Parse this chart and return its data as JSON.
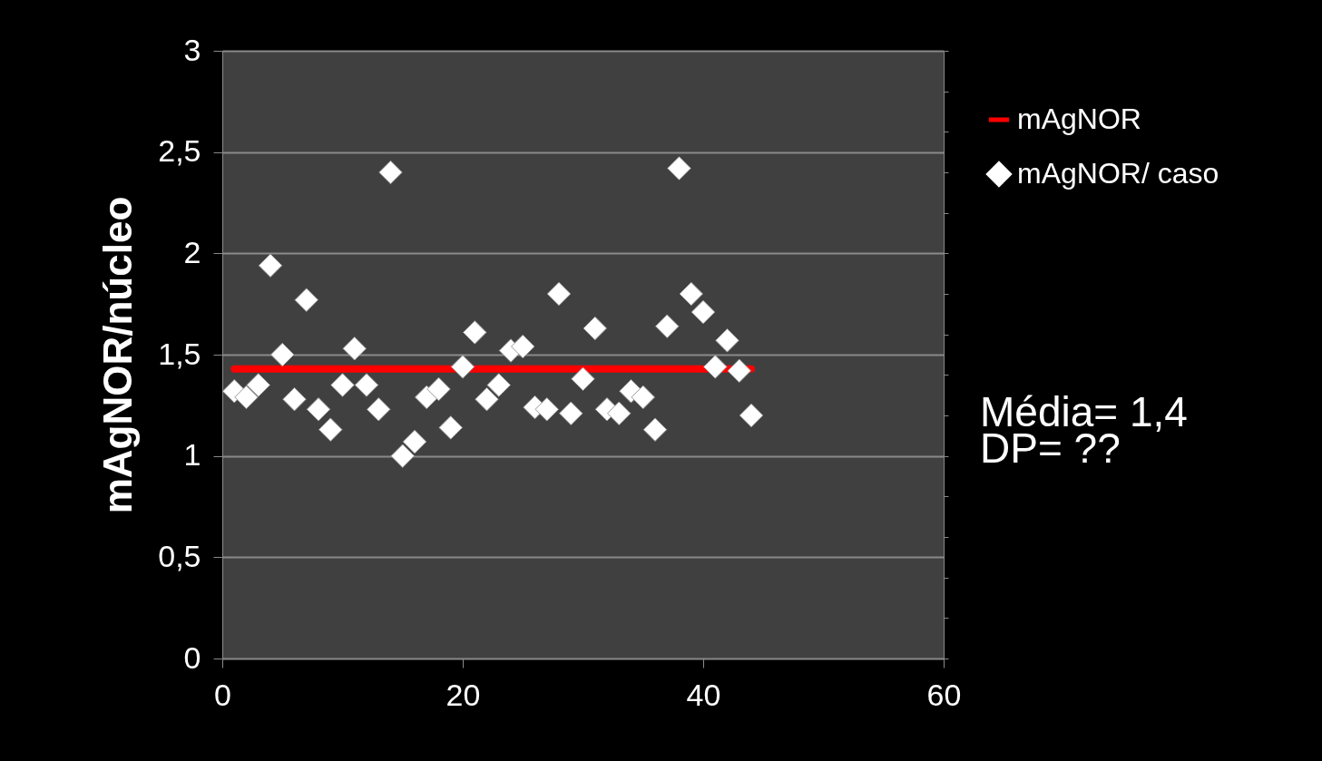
{
  "chart_data": {
    "type": "scatter",
    "ylabel": "mAgNOR/núcleo",
    "xlim": [
      0,
      60
    ],
    "xticks": [
      0,
      20,
      40,
      60
    ],
    "ylim": [
      0,
      3
    ],
    "yticks": [
      0,
      {
        "value": 0.5,
        "label": "0,5"
      },
      1,
      {
        "value": 1.5,
        "label": "1,5"
      },
      2,
      {
        "value": 2.5,
        "label": "2,5"
      },
      3
    ],
    "grid": "y",
    "legend": "right",
    "annotations": [
      "Média=  1,4",
      "DP= ??"
    ],
    "series": [
      {
        "name": "mAgNOR",
        "type": "line",
        "color": "#ff0000",
        "marker": "none",
        "x": [
          1,
          44
        ],
        "values": [
          1.43,
          1.43
        ]
      },
      {
        "name": "mAgNOR/ caso",
        "type": "scatter",
        "color": "#ffffff",
        "marker": "diamond",
        "x": [
          1,
          2,
          3,
          4,
          5,
          6,
          7,
          8,
          9,
          10,
          11,
          12,
          13,
          14,
          15,
          16,
          17,
          18,
          19,
          20,
          21,
          22,
          23,
          24,
          25,
          26,
          27,
          28,
          29,
          30,
          31,
          32,
          33,
          34,
          35,
          36,
          37,
          38,
          39,
          40,
          41,
          42,
          43,
          44
        ],
        "values": [
          1.32,
          1.29,
          1.35,
          1.94,
          1.5,
          1.28,
          1.77,
          1.23,
          1.13,
          1.35,
          1.53,
          1.35,
          1.23,
          2.4,
          1.0,
          1.07,
          1.29,
          1.33,
          1.14,
          1.44,
          1.61,
          1.28,
          1.35,
          1.52,
          1.54,
          1.24,
          1.23,
          1.8,
          1.21,
          1.38,
          1.63,
          1.23,
          1.21,
          1.32,
          1.29,
          1.13,
          1.64,
          2.42,
          1.8,
          1.71,
          1.44,
          1.57,
          1.42,
          1.2
        ]
      }
    ]
  }
}
